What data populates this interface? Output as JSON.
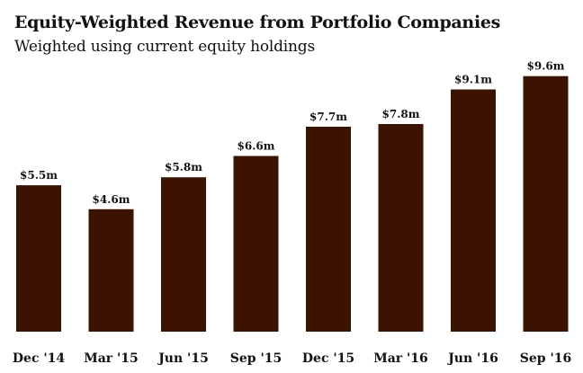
{
  "chart_data": {
    "type": "bar",
    "title": "Equity-Weighted Revenue from Portfolio Companies",
    "subtitle": "Weighted using current equity holdings",
    "categories": [
      "Dec '14",
      "Mar '15",
      "Jun '15",
      "Sep '15",
      "Dec '15",
      "Mar '16",
      "Jun '16",
      "Sep '16"
    ],
    "values": [
      5.5,
      4.6,
      5.8,
      6.6,
      7.7,
      7.8,
      9.1,
      9.6
    ],
    "value_labels": [
      "$5.5m",
      "$4.6m",
      "$5.8m",
      "$6.6m",
      "$7.7m",
      "$7.8m",
      "$9.1m",
      "$9.6m"
    ],
    "ylim": [
      0,
      10.4
    ],
    "grid": false,
    "colors": {
      "bar": "#3b1300"
    }
  }
}
